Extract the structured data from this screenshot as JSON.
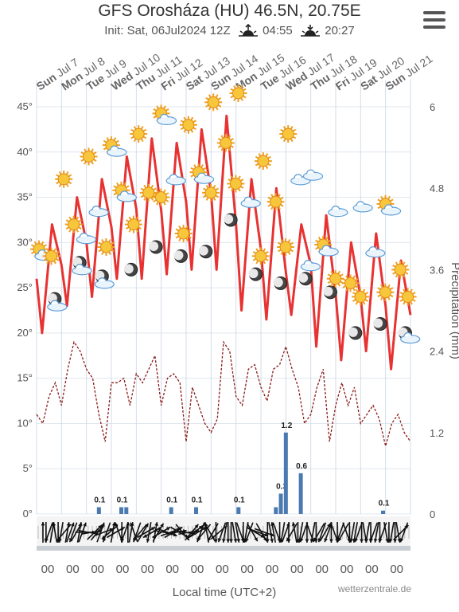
{
  "header": {
    "title": "GFS Orosháza (HU) 46.5N, 20.75E",
    "init_label": "Init: Sat, 06Jul2024 12Z",
    "sunrise": "04:55",
    "sunset": "20:27"
  },
  "menu": {
    "icon": "hamburger-menu-icon"
  },
  "credit": "wetterzentrale.de",
  "chart_data": {
    "type": "line",
    "days": [
      {
        "dow": "Sun",
        "date": "Jul 7",
        "bold": false
      },
      {
        "dow": "Mon",
        "date": "Jul 8",
        "bold": true
      },
      {
        "dow": "Tue",
        "date": "Jul 9",
        "bold": true
      },
      {
        "dow": "Wed",
        "date": "Jul 10",
        "bold": true
      },
      {
        "dow": "Thu",
        "date": "Jul 11",
        "bold": true
      },
      {
        "dow": "Fri",
        "date": "Jul 12",
        "bold": true
      },
      {
        "dow": "Sat",
        "date": "Jul 13",
        "bold": true
      },
      {
        "dow": "Sun",
        "date": "Jul 14",
        "bold": true
      },
      {
        "dow": "Mon",
        "date": "Jul 15",
        "bold": true
      },
      {
        "dow": "Tue",
        "date": "Jul 16",
        "bold": true
      },
      {
        "dow": "Wed",
        "date": "Jul 17",
        "bold": true
      },
      {
        "dow": "Thu",
        "date": "Jul 18",
        "bold": true
      },
      {
        "dow": "Fri",
        "date": "Jul 19",
        "bold": true
      },
      {
        "dow": "Sat",
        "date": "Jul 20",
        "bold": true
      },
      {
        "dow": "Sun",
        "date": "Jul 21",
        "bold": true
      }
    ],
    "left_axis": {
      "ticks": [
        "0°",
        "5°",
        "10°",
        "15°",
        "20°",
        "25°",
        "30°",
        "35°",
        "40°",
        "45°"
      ],
      "range": [
        0,
        45
      ]
    },
    "right_axis": {
      "label": "Precipitation (mm)",
      "ticks": [
        "0",
        "1.2",
        "2.4",
        "3.6",
        "4.8",
        "6"
      ],
      "range": [
        0,
        6
      ]
    },
    "x_axis": {
      "label": "Local time (UTC+2)",
      "ticks": [
        "00",
        "00",
        "00",
        "00",
        "00",
        "00",
        "00",
        "00",
        "00",
        "00",
        "00",
        "00",
        "00",
        "00",
        "00"
      ],
      "range_days": [
        0,
        15
      ]
    },
    "temperature": {
      "color": "#e83232",
      "max": [
        32,
        35,
        37,
        39.5,
        41.5,
        41,
        42.5,
        44,
        37,
        36,
        32,
        33,
        30,
        31,
        28
      ],
      "min": [
        20,
        23,
        24,
        26,
        26,
        26.5,
        27,
        27,
        22.5,
        21.5,
        22,
        18.5,
        17,
        18,
        16
      ]
    },
    "dew_point": {
      "color": "#8b1a1a",
      "values": [
        11,
        10,
        13,
        14.5,
        12,
        16,
        19,
        18,
        16,
        15,
        11,
        8,
        14.5,
        14.5,
        15,
        12,
        15.5,
        14.5,
        16,
        17.5,
        12,
        15,
        15.5,
        14.5,
        8,
        14,
        12,
        10,
        9,
        10.5,
        19,
        18,
        13,
        12,
        16,
        16.5,
        14,
        12.5,
        16,
        16.5,
        18.5,
        16,
        14,
        10,
        11,
        14,
        16,
        8,
        12,
        14.5,
        12,
        14,
        10,
        11,
        12,
        10.5,
        7.5,
        10,
        11,
        9,
        8
      ]
    },
    "precipitation": {
      "color": "#4a7ab0",
      "bars": [
        {
          "day": 2.5,
          "value": 0.1,
          "label": "0.1"
        },
        {
          "day": 3.4,
          "value": 0.1,
          "label": "0.1"
        },
        {
          "day": 3.6,
          "value": 0.1,
          "label": ""
        },
        {
          "day": 5.4,
          "value": 0.1,
          "label": "0.1"
        },
        {
          "day": 6.4,
          "value": 0.1,
          "label": "0.1"
        },
        {
          "day": 8.1,
          "value": 0.1,
          "label": "0.1"
        },
        {
          "day": 9.6,
          "value": 0.1,
          "label": ""
        },
        {
          "day": 9.8,
          "value": 0.3,
          "label": "0.3"
        },
        {
          "day": 10.0,
          "value": 1.2,
          "label": "1.2"
        },
        {
          "day": 10.6,
          "value": 0.6,
          "label": "0.6"
        },
        {
          "day": 13.9,
          "value": 0.05,
          "label": "0.1"
        }
      ]
    },
    "weather_icons": [
      {
        "day": 0.0,
        "t": 29,
        "icon": "sun-cloud"
      },
      {
        "day": 0.4,
        "t": 28.5,
        "icon": "sun"
      },
      {
        "day": 0.6,
        "t": 23.5,
        "icon": "moon-cloud"
      },
      {
        "day": 0.9,
        "t": 37,
        "icon": "sun"
      },
      {
        "day": 1.3,
        "t": 32,
        "icon": "sun"
      },
      {
        "day": 1.6,
        "t": 27.5,
        "icon": "moon-cloud"
      },
      {
        "day": 1.8,
        "t": 30.5,
        "icon": "cloud"
      },
      {
        "day": 1.9,
        "t": 39.5,
        "icon": "sun"
      },
      {
        "day": 2.3,
        "t": 33.5,
        "icon": "cloud"
      },
      {
        "day": 2.5,
        "t": 26,
        "icon": "moon-cloud"
      },
      {
        "day": 2.6,
        "t": 29.5,
        "icon": "sun"
      },
      {
        "day": 2.9,
        "t": 40.5,
        "icon": "sun-cloud"
      },
      {
        "day": 3.3,
        "t": 35.5,
        "icon": "sun-cloud"
      },
      {
        "day": 3.6,
        "t": 27,
        "icon": "moon"
      },
      {
        "day": 3.7,
        "t": 32,
        "icon": "sun"
      },
      {
        "day": 3.9,
        "t": 42,
        "icon": "sun"
      },
      {
        "day": 4.3,
        "t": 35.5,
        "icon": "sun"
      },
      {
        "day": 4.6,
        "t": 29.5,
        "icon": "moon"
      },
      {
        "day": 4.8,
        "t": 35,
        "icon": "sun"
      },
      {
        "day": 4.9,
        "t": 44,
        "icon": "sun-cloud"
      },
      {
        "day": 5.4,
        "t": 37,
        "icon": "cloud"
      },
      {
        "day": 5.6,
        "t": 28.5,
        "icon": "moon"
      },
      {
        "day": 5.7,
        "t": 31,
        "icon": "sun"
      },
      {
        "day": 5.9,
        "t": 43,
        "icon": "sun"
      },
      {
        "day": 6.4,
        "t": 37.5,
        "icon": "sun-cloud"
      },
      {
        "day": 6.6,
        "t": 29,
        "icon": "moon"
      },
      {
        "day": 6.8,
        "t": 35.5,
        "icon": "sun"
      },
      {
        "day": 6.9,
        "t": 45.5,
        "icon": "sun"
      },
      {
        "day": 7.4,
        "t": 41,
        "icon": "sun"
      },
      {
        "day": 7.6,
        "t": 32.5,
        "icon": "moon"
      },
      {
        "day": 7.8,
        "t": 36.5,
        "icon": "sun"
      },
      {
        "day": 7.9,
        "t": 46.5,
        "icon": "sun"
      },
      {
        "day": 8.4,
        "t": 34.5,
        "icon": "cloud"
      },
      {
        "day": 8.6,
        "t": 26.5,
        "icon": "moon"
      },
      {
        "day": 8.8,
        "t": 28.5,
        "icon": "sun"
      },
      {
        "day": 8.9,
        "t": 39,
        "icon": "sun"
      },
      {
        "day": 9.4,
        "t": 34.5,
        "icon": "sun"
      },
      {
        "day": 9.6,
        "t": 25.5,
        "icon": "moon"
      },
      {
        "day": 9.8,
        "t": 29.5,
        "icon": "sun"
      },
      {
        "day": 9.9,
        "t": 42,
        "icon": "sun"
      },
      {
        "day": 10.4,
        "t": 37,
        "icon": "cloud"
      },
      {
        "day": 10.6,
        "t": 26,
        "icon": "moon"
      },
      {
        "day": 10.8,
        "t": 27.5,
        "icon": "cloud"
      },
      {
        "day": 10.9,
        "t": 37.5,
        "icon": "cloud"
      },
      {
        "day": 11.4,
        "t": 29.5,
        "icon": "sun-cloud"
      },
      {
        "day": 11.6,
        "t": 24.5,
        "icon": "moon"
      },
      {
        "day": 11.8,
        "t": 26,
        "icon": "sun"
      },
      {
        "day": 11.9,
        "t": 33.5,
        "icon": "cloud"
      },
      {
        "day": 12.4,
        "t": 25.5,
        "icon": "sun"
      },
      {
        "day": 12.6,
        "t": 20,
        "icon": "moon"
      },
      {
        "day": 12.8,
        "t": 24,
        "icon": "sun"
      },
      {
        "day": 12.9,
        "t": 34,
        "icon": "cloud"
      },
      {
        "day": 13.4,
        "t": 29,
        "icon": "cloud"
      },
      {
        "day": 13.6,
        "t": 21,
        "icon": "moon"
      },
      {
        "day": 13.8,
        "t": 24.5,
        "icon": "sun"
      },
      {
        "day": 13.9,
        "t": 34,
        "icon": "sun-cloud"
      },
      {
        "day": 14.4,
        "t": 27,
        "icon": "sun"
      },
      {
        "day": 14.6,
        "t": 20,
        "icon": "moon"
      },
      {
        "day": 14.7,
        "t": 24,
        "icon": "sun"
      },
      {
        "day": 14.8,
        "t": 19.5,
        "icon": "cloud"
      }
    ],
    "wind_directions_deg": [
      0,
      180,
      200,
      10,
      350,
      180,
      190,
      220,
      10,
      20,
      200,
      30,
      10,
      20,
      90,
      100,
      80,
      45,
      40,
      20,
      70,
      200,
      230,
      10,
      60,
      340,
      180,
      200,
      0,
      10,
      340,
      200,
      220,
      30,
      60,
      190,
      240,
      10,
      30,
      60,
      100,
      110,
      70,
      60,
      80,
      120,
      140,
      100,
      80,
      40,
      50,
      60,
      200,
      220,
      350,
      330,
      210,
      180,
      230,
      200,
      190,
      180,
      180,
      170,
      170,
      160,
      180,
      190,
      200,
      150,
      120,
      110,
      150,
      110,
      180,
      170,
      350,
      160,
      180,
      190,
      20,
      180,
      210,
      350,
      180,
      190,
      200,
      180,
      160,
      190,
      180,
      210,
      200,
      30,
      200,
      180,
      160,
      180,
      200,
      210,
      160,
      180,
      190,
      190,
      200,
      180,
      170,
      190,
      180,
      200,
      190,
      180,
      200,
      170,
      180,
      190,
      180,
      170,
      45,
      200
    ]
  }
}
